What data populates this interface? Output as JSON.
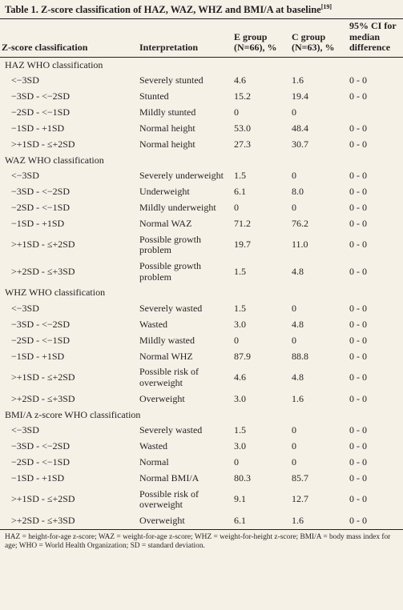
{
  "title": {
    "text": "Table 1. Z-score classification of HAZ, WAZ, WHZ and BMI/A at baseline",
    "ref": "[19]"
  },
  "table": {
    "header": [
      "Z-score classification",
      "Interpretation",
      "E group (N=66), %",
      "C group (N=63), %",
      "95% CI for median difference"
    ],
    "sections": [
      {
        "title": "HAZ WHO classification",
        "rows": [
          [
            "<−3SD",
            "Severely stunted",
            "4.6",
            "1.6",
            "0 - 0"
          ],
          [
            "−3SD - <−2SD",
            "Stunted",
            "15.2",
            "19.4",
            "0 - 0"
          ],
          [
            "−2SD - <−1SD",
            "Mildly stunted",
            "0",
            "0",
            null
          ],
          [
            "−1SD - +1SD",
            "Normal height",
            "53.0",
            "48.4",
            "0 - 0"
          ],
          [
            ">+1SD - ≤+2SD",
            "Normal height",
            "27.3",
            "30.7",
            "0 - 0"
          ]
        ]
      },
      {
        "title": "WAZ WHO classification",
        "rows": [
          [
            "<−3SD",
            "Severely underweight",
            "1.5",
            "0",
            "0 - 0"
          ],
          [
            "−3SD - <−2SD",
            "Underweight",
            "6.1",
            "8.0",
            "0 - 0"
          ],
          [
            "−2SD - <−1SD",
            "Mildly underweight",
            "0",
            "0",
            "0 - 0"
          ],
          [
            "−1SD - +1SD",
            "Normal WAZ",
            "71.2",
            "76.2",
            "0 - 0"
          ],
          [
            ">+1SD - ≤+2SD",
            "Possible growth problem",
            "19.7",
            "11.0",
            "0 - 0"
          ],
          [
            ">+2SD - ≤+3SD",
            "Possible growth problem",
            "1.5",
            "4.8",
            "0 - 0"
          ]
        ]
      },
      {
        "title": "WHZ WHO classification",
        "rows": [
          [
            "<−3SD",
            "Severely wasted",
            "1.5",
            "0",
            "0 - 0"
          ],
          [
            "−3SD - <−2SD",
            "Wasted",
            "3.0",
            "4.8",
            "0 - 0"
          ],
          [
            "−2SD - <−1SD",
            "Mildly wasted",
            "0",
            "0",
            "0 - 0"
          ],
          [
            "−1SD - +1SD",
            "Normal WHZ",
            "87.9",
            "88.8",
            "0 - 0"
          ],
          [
            ">+1SD - ≤+2SD",
            "Possible risk of overweight",
            "4.6",
            "4.8",
            "0 - 0"
          ],
          [
            ">+2SD - ≤+3SD",
            "Overweight",
            "3.0",
            "1.6",
            "0 - 0"
          ]
        ]
      },
      {
        "title": "BMI/A z-score WHO classification",
        "rows": [
          [
            "<−3SD",
            "Severely wasted",
            "1.5",
            "0",
            "0 - 0"
          ],
          [
            "−3SD - <−2SD",
            "Wasted",
            "3.0",
            "0",
            "0 - 0"
          ],
          [
            "−2SD - <−1SD",
            "Normal",
            "0",
            "0",
            "0 - 0"
          ],
          [
            "−1SD - +1SD",
            "Normal BMI/A",
            "80.3",
            "85.7",
            "0 - 0"
          ],
          [
            ">+1SD - ≤+2SD",
            "Possible risk of overweight",
            "9.1",
            "12.7",
            "0 - 0"
          ],
          [
            ">+2SD - ≤+3SD",
            "Overweight",
            "6.1",
            "1.6",
            "0 - 0"
          ]
        ]
      }
    ]
  },
  "footnote": "HAZ = height-for-age z-score; WAZ = weight-for-age z-score; WHZ = weight-for-height z-score; BMI/A = body mass index for age; WHO = World Health Organization; SD = standard deviation."
}
